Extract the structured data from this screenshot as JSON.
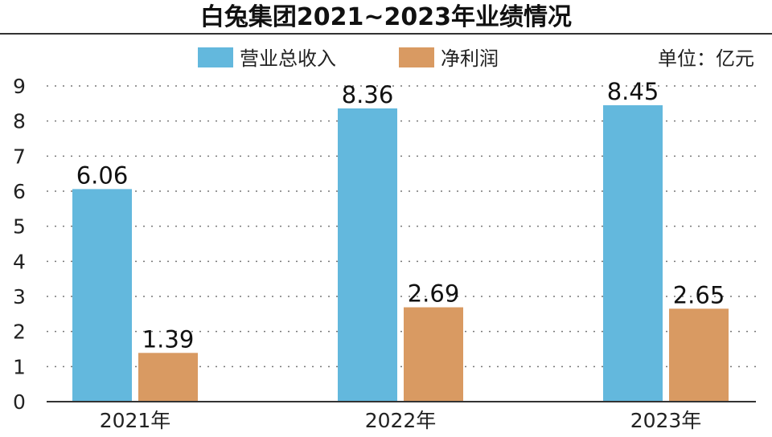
{
  "chart_data": {
    "type": "bar",
    "title": "白兔集团2021~2023年业绩情况",
    "unit_label": "单位：亿元",
    "categories": [
      "2021年",
      "2022年",
      "2023年"
    ],
    "series": [
      {
        "name": "营业总收入",
        "values": [
          6.06,
          8.36,
          8.45
        ],
        "labels": [
          "6.06",
          "8.36",
          "8.45"
        ],
        "color": "#63b8dd"
      },
      {
        "name": "净利润",
        "values": [
          1.39,
          2.69,
          2.65
        ],
        "labels": [
          "1.39",
          "2.69",
          "2.65"
        ],
        "color": "#d99a62"
      }
    ],
    "ylim": [
      0,
      9
    ],
    "yticks": [
      "0",
      "1",
      "2",
      "3",
      "4",
      "5",
      "6",
      "7",
      "8",
      "9"
    ],
    "grid": true,
    "legend_position": "top"
  }
}
